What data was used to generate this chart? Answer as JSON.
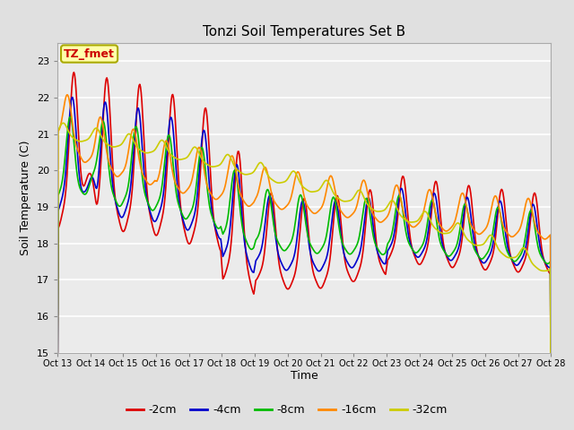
{
  "title": "Tonzi Soil Temperatures Set B",
  "xlabel": "Time",
  "ylabel": "Soil Temperature (C)",
  "ylim": [
    15.0,
    23.5
  ],
  "yticks": [
    15.0,
    16.0,
    17.0,
    18.0,
    19.0,
    20.0,
    21.0,
    22.0,
    23.0
  ],
  "series_colors": [
    "#dd0000",
    "#0000cc",
    "#00bb00",
    "#ff8800",
    "#cccc00"
  ],
  "series_labels": [
    "-2cm",
    "-4cm",
    "-8cm",
    "-16cm",
    "-32cm"
  ],
  "annotation_text": "TZ_fmet",
  "annotation_bg": "#ffffaa",
  "annotation_border": "#aaaa00",
  "annotation_text_color": "#cc0000",
  "bg_color": "#e0e0e0",
  "plot_bg_color": "#ebebeb",
  "x_tick_labels": [
    "Oct 13",
    "Oct 14",
    "Oct 15",
    "Oct 16",
    "Oct 17",
    "Oct 18",
    "Oct 19",
    "Oct 20",
    "Oct 21",
    "Oct 22",
    "Oct 23",
    "Oct 24",
    "Oct 25",
    "Oct 26",
    "Oct 27",
    "Oct 28"
  ],
  "line_width": 1.2
}
